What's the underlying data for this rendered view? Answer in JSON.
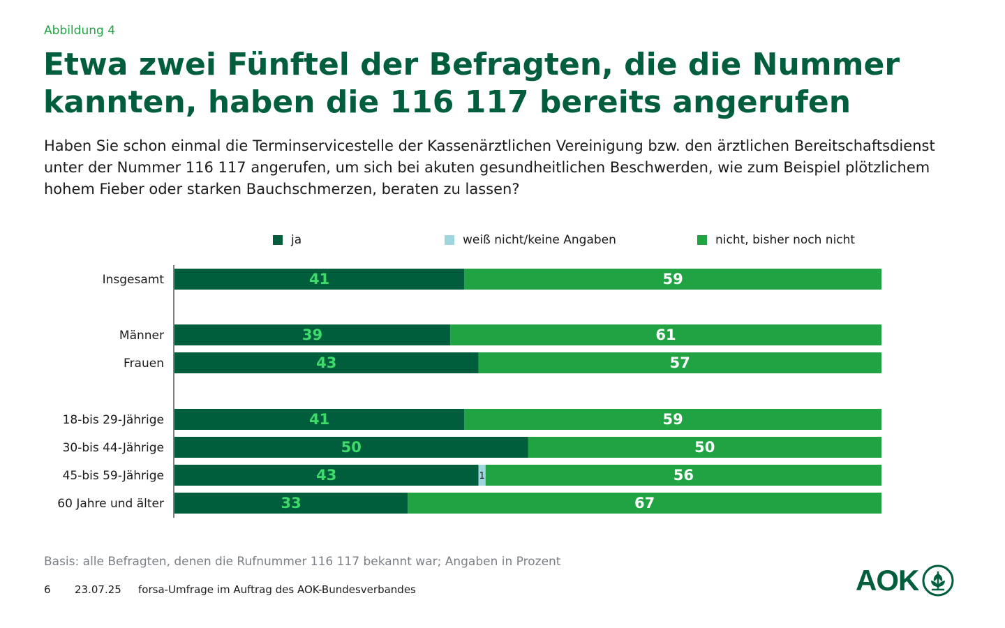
{
  "figure_label": "Abbildung 4",
  "title": "Etwa zwei Fünftel der Befragten, die die Nummer kannten, haben die 116 117 bereits angerufen",
  "subtitle": "Haben Sie schon einmal die Terminservicestelle der Kassenärztlichen Vereinigung bzw. den ärztlichen Bereitschaftsdienst unter der Nummer 116 117 angerufen, um sich bei akuten gesundheitlichen Beschwerden, wie zum Beispiel plötzlichem hohem Fieber oder starken Bauchschmerzen, beraten zu lassen?",
  "colors": {
    "ja": "#005e3c",
    "weiss_nicht": "#9fd6dd",
    "nicht": "#1fa343",
    "ja_label": "#3ddc6a",
    "nicht_label": "#ffffff",
    "title": "#005e3c"
  },
  "chart_data": {
    "type": "bar",
    "orientation": "horizontal",
    "stacked": true,
    "unit": "Prozent",
    "xlim": [
      0,
      100
    ],
    "legend": [
      "ja",
      "weiß nicht/keine Angaben",
      "nicht, bisher noch nicht"
    ],
    "groups": [
      [
        "Insgesamt"
      ],
      [
        "Männer",
        "Frauen"
      ],
      [
        "18-bis 29-Jährige",
        "30-bis 44-Jährige",
        "45-bis 59-Jährige",
        "60 Jahre und älter"
      ]
    ],
    "categories": [
      "Insgesamt",
      "Männer",
      "Frauen",
      "18-bis 29-Jährige",
      "30-bis 44-Jährige",
      "45-bis 59-Jährige",
      "60 Jahre und älter"
    ],
    "series": [
      {
        "name": "ja",
        "values": [
          41,
          39,
          43,
          41,
          50,
          43,
          33
        ]
      },
      {
        "name": "weiß nicht/keine Angaben",
        "values": [
          0,
          0,
          0,
          0,
          0,
          1,
          0
        ]
      },
      {
        "name": "nicht, bisher noch nicht",
        "values": [
          59,
          61,
          57,
          59,
          50,
          56,
          67
        ]
      }
    ]
  },
  "basis": "Basis: alle Befragten, denen die Rufnummer 116 117 bekannt war; Angaben in Prozent",
  "footer": {
    "page": "6",
    "date": "23.07.25",
    "source": "forsa-Umfrage im Auftrag des AOK-Bundesverbandes"
  },
  "logo": {
    "text": "AOK"
  }
}
